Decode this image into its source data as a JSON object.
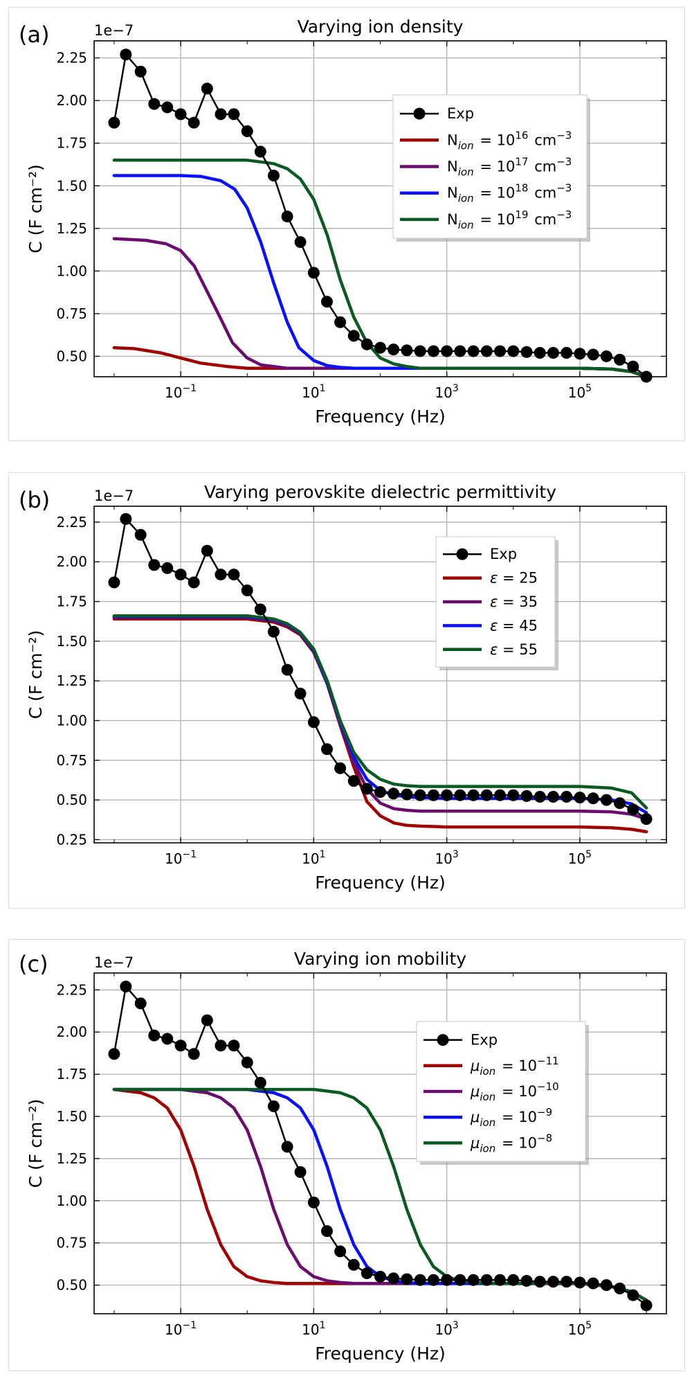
{
  "chart_data": [
    {
      "panel_label": "(a)",
      "type": "line",
      "title": "Varying ion density",
      "xlabel": "Frequency (Hz)",
      "ylabel": "C (F cm⁻²)",
      "y_multiplier_label": "1e−7",
      "xscale": "log",
      "xlim": [
        0.005,
        2000000
      ],
      "ylim": [
        0.38,
        2.35
      ],
      "ytick_labels": [
        "0.50",
        "0.75",
        "1.00",
        "1.25",
        "1.50",
        "1.75",
        "2.00",
        "2.25"
      ],
      "xtick_labels": [
        {
          "base": "10",
          "exp": "−1"
        },
        {
          "base": "10",
          "exp": "1"
        },
        {
          "base": "10",
          "exp": "3"
        },
        {
          "base": "10",
          "exp": "5"
        }
      ],
      "legend_position": "upper right",
      "exp": {
        "label": "Exp",
        "x": [
          0.01,
          0.015,
          0.025,
          0.04,
          0.063,
          0.1,
          0.158,
          0.25,
          0.4,
          0.63,
          1,
          1.58,
          2.5,
          4,
          6.3,
          10,
          15.8,
          25,
          40,
          63,
          100,
          158,
          251,
          398,
          631,
          1000,
          1585,
          2512,
          3981,
          6310,
          10000,
          15849,
          25119,
          39811,
          63096,
          100000,
          158489,
          251189,
          398107,
          630957,
          1000000
        ],
        "y": [
          1.87,
          2.27,
          2.17,
          1.98,
          1.96,
          1.92,
          1.87,
          2.07,
          1.92,
          1.92,
          1.82,
          1.7,
          1.56,
          1.32,
          1.17,
          0.99,
          0.82,
          0.7,
          0.62,
          0.57,
          0.55,
          0.54,
          0.535,
          0.53,
          0.53,
          0.53,
          0.53,
          0.53,
          0.53,
          0.53,
          0.53,
          0.525,
          0.52,
          0.52,
          0.52,
          0.515,
          0.51,
          0.5,
          0.48,
          0.44,
          0.38
        ]
      },
      "series": [
        {
          "label_main": "N",
          "label_sub": "ion",
          "label_post": " = 10",
          "label_sup": "16",
          "label_tail": " cm",
          "label_tail_sup": "−3",
          "color": "#a10000",
          "x": [
            0.01,
            0.02,
            0.05,
            0.1,
            0.2,
            0.5,
            1,
            3,
            10,
            100,
            1000,
            10000,
            100000,
            300000,
            600000,
            1000000
          ],
          "y": [
            0.55,
            0.545,
            0.52,
            0.49,
            0.46,
            0.44,
            0.43,
            0.43,
            0.43,
            0.43,
            0.43,
            0.43,
            0.43,
            0.425,
            0.41,
            0.38
          ]
        },
        {
          "label_main": "N",
          "label_sub": "ion",
          "label_post": " = 10",
          "label_sup": "17",
          "label_tail": " cm",
          "label_tail_sup": "−3",
          "color": "#6a0d6e",
          "x": [
            0.01,
            0.03,
            0.06,
            0.1,
            0.16,
            0.25,
            0.4,
            0.6,
            1,
            1.6,
            2.5,
            4,
            10,
            100,
            1000,
            10000,
            100000,
            300000,
            600000,
            1000000
          ],
          "y": [
            1.19,
            1.18,
            1.16,
            1.12,
            1.03,
            0.88,
            0.72,
            0.58,
            0.49,
            0.45,
            0.44,
            0.43,
            0.43,
            0.43,
            0.43,
            0.43,
            0.43,
            0.425,
            0.41,
            0.38
          ]
        },
        {
          "label_main": "N",
          "label_sub": "ion",
          "label_post": " = 10",
          "label_sup": "18",
          "label_tail": " cm",
          "label_tail_sup": "−3",
          "color": "#0a10ff",
          "x": [
            0.01,
            0.1,
            0.2,
            0.4,
            0.65,
            1,
            1.6,
            2.5,
            4,
            6,
            10,
            16,
            25,
            40,
            100,
            1000,
            10000,
            100000,
            300000,
            600000,
            1000000
          ],
          "y": [
            1.56,
            1.56,
            1.555,
            1.53,
            1.48,
            1.37,
            1.17,
            0.93,
            0.7,
            0.55,
            0.475,
            0.445,
            0.435,
            0.43,
            0.43,
            0.43,
            0.43,
            0.43,
            0.425,
            0.41,
            0.38
          ]
        },
        {
          "label_main": "N",
          "label_sub": "ion",
          "label_post": " = 10",
          "label_sup": "19",
          "label_tail": " cm",
          "label_tail_sup": "−3",
          "color": "#0b5a22",
          "x": [
            0.01,
            1,
            2.5,
            4,
            6.3,
            10,
            16,
            25,
            40,
            63,
            100,
            160,
            250,
            400,
            1000,
            10000,
            100000,
            300000,
            600000,
            1000000
          ],
          "y": [
            1.65,
            1.65,
            1.63,
            1.6,
            1.54,
            1.42,
            1.21,
            0.95,
            0.73,
            0.58,
            0.49,
            0.455,
            0.44,
            0.43,
            0.43,
            0.43,
            0.43,
            0.425,
            0.41,
            0.38
          ]
        }
      ]
    },
    {
      "panel_label": "(b)",
      "type": "line",
      "title": "Varying perovskite dielectric permittivity",
      "xlabel": "Frequency (Hz)",
      "ylabel": "C (F cm⁻²)",
      "y_multiplier_label": "1e−7",
      "xscale": "log",
      "xlim": [
        0.005,
        2000000
      ],
      "ylim": [
        0.23,
        2.35
      ],
      "ytick_labels": [
        "0.25",
        "0.50",
        "0.75",
        "1.00",
        "1.25",
        "1.50",
        "1.75",
        "2.00",
        "2.25"
      ],
      "xtick_labels": [
        {
          "base": "10",
          "exp": "−1"
        },
        {
          "base": "10",
          "exp": "1"
        },
        {
          "base": "10",
          "exp": "3"
        },
        {
          "base": "10",
          "exp": "5"
        }
      ],
      "legend_position": "upper right",
      "exp": {
        "label": "Exp",
        "x": [
          0.01,
          0.015,
          0.025,
          0.04,
          0.063,
          0.1,
          0.158,
          0.25,
          0.4,
          0.63,
          1,
          1.58,
          2.5,
          4,
          6.3,
          10,
          15.8,
          25,
          40,
          63,
          100,
          158,
          251,
          398,
          631,
          1000,
          1585,
          2512,
          3981,
          6310,
          10000,
          15849,
          25119,
          39811,
          63096,
          100000,
          158489,
          251189,
          398107,
          630957,
          1000000
        ],
        "y": [
          1.87,
          2.27,
          2.17,
          1.98,
          1.96,
          1.92,
          1.87,
          2.07,
          1.92,
          1.92,
          1.82,
          1.7,
          1.56,
          1.32,
          1.17,
          0.99,
          0.82,
          0.7,
          0.62,
          0.57,
          0.55,
          0.54,
          0.535,
          0.53,
          0.53,
          0.53,
          0.53,
          0.53,
          0.53,
          0.53,
          0.53,
          0.525,
          0.52,
          0.52,
          0.52,
          0.515,
          0.51,
          0.5,
          0.48,
          0.44,
          0.38
        ]
      },
      "series": [
        {
          "label_main": "ε",
          "label_sub": "",
          "label_post": " = 25",
          "label_sup": "",
          "label_tail": "",
          "label_tail_sup": "",
          "color": "#a10000",
          "x": [
            0.01,
            1,
            2.5,
            4,
            6.3,
            10,
            16,
            25,
            40,
            63,
            100,
            160,
            250,
            400,
            1000,
            10000,
            100000,
            300000,
            600000,
            1000000
          ],
          "y": [
            1.64,
            1.64,
            1.62,
            1.59,
            1.54,
            1.43,
            1.23,
            0.97,
            0.71,
            0.49,
            0.4,
            0.355,
            0.34,
            0.335,
            0.33,
            0.33,
            0.33,
            0.325,
            0.315,
            0.3
          ]
        },
        {
          "label_main": "ε",
          "label_sub": "",
          "label_post": " = 35",
          "label_sup": "",
          "label_tail": "",
          "label_tail_sup": "",
          "color": "#6a0d6e",
          "x": [
            0.01,
            1,
            2.5,
            4,
            6.3,
            10,
            16,
            25,
            40,
            63,
            100,
            160,
            250,
            400,
            1000,
            10000,
            100000,
            300000,
            600000,
            1000000
          ],
          "y": [
            1.65,
            1.65,
            1.63,
            1.6,
            1.55,
            1.44,
            1.23,
            0.98,
            0.74,
            0.57,
            0.48,
            0.445,
            0.435,
            0.43,
            0.43,
            0.43,
            0.43,
            0.425,
            0.41,
            0.38
          ]
        },
        {
          "label_main": "ε",
          "label_sub": "",
          "label_post": " = 45",
          "label_sup": "",
          "label_tail": "",
          "label_tail_sup": "",
          "color": "#0a10ff",
          "x": [
            0.01,
            1,
            2.5,
            4,
            6.3,
            10,
            16,
            25,
            40,
            63,
            100,
            160,
            250,
            400,
            1000,
            10000,
            100000,
            300000,
            600000,
            1000000
          ],
          "y": [
            1.655,
            1.655,
            1.635,
            1.605,
            1.55,
            1.44,
            1.24,
            0.99,
            0.77,
            0.63,
            0.56,
            0.53,
            0.52,
            0.515,
            0.51,
            0.51,
            0.51,
            0.5,
            0.475,
            0.42
          ]
        },
        {
          "label_main": "ε",
          "label_sub": "",
          "label_post": " = 55",
          "label_sup": "",
          "label_tail": "",
          "label_tail_sup": "",
          "color": "#0b5a22",
          "x": [
            0.01,
            1,
            2.5,
            4,
            6.3,
            10,
            16,
            25,
            40,
            63,
            100,
            160,
            250,
            400,
            1000,
            10000,
            100000,
            300000,
            600000,
            1000000
          ],
          "y": [
            1.66,
            1.66,
            1.64,
            1.61,
            1.555,
            1.45,
            1.25,
            1.0,
            0.8,
            0.69,
            0.63,
            0.6,
            0.59,
            0.585,
            0.585,
            0.585,
            0.585,
            0.575,
            0.545,
            0.45
          ]
        }
      ]
    },
    {
      "panel_label": "(c)",
      "type": "line",
      "title": "Varying ion mobility",
      "xlabel": "Frequency (Hz)",
      "ylabel": "C (F cm⁻²)",
      "y_multiplier_label": "1e−7",
      "xscale": "log",
      "xlim": [
        0.005,
        2000000
      ],
      "ylim": [
        0.33,
        2.35
      ],
      "ytick_labels": [
        "0.50",
        "0.75",
        "1.00",
        "1.25",
        "1.50",
        "1.75",
        "2.00",
        "2.25"
      ],
      "xtick_labels": [
        {
          "base": "10",
          "exp": "−1"
        },
        {
          "base": "10",
          "exp": "1"
        },
        {
          "base": "10",
          "exp": "3"
        },
        {
          "base": "10",
          "exp": "5"
        }
      ],
      "legend_position": "upper right",
      "exp": {
        "label": "Exp",
        "x": [
          0.01,
          0.015,
          0.025,
          0.04,
          0.063,
          0.1,
          0.158,
          0.25,
          0.4,
          0.63,
          1,
          1.58,
          2.5,
          4,
          6.3,
          10,
          15.8,
          25,
          40,
          63,
          100,
          158,
          251,
          398,
          631,
          1000,
          1585,
          2512,
          3981,
          6310,
          10000,
          15849,
          25119,
          39811,
          63096,
          100000,
          158489,
          251189,
          398107,
          630957,
          1000000
        ],
        "y": [
          1.87,
          2.27,
          2.17,
          1.98,
          1.96,
          1.92,
          1.87,
          2.07,
          1.92,
          1.92,
          1.82,
          1.7,
          1.56,
          1.32,
          1.17,
          0.99,
          0.82,
          0.7,
          0.62,
          0.57,
          0.55,
          0.54,
          0.535,
          0.53,
          0.53,
          0.53,
          0.53,
          0.53,
          0.53,
          0.53,
          0.53,
          0.525,
          0.52,
          0.52,
          0.52,
          0.515,
          0.51,
          0.5,
          0.48,
          0.44,
          0.38
        ]
      },
      "series": [
        {
          "label_main": "μ",
          "label_sub": "ion",
          "label_post": " = 10",
          "label_sup": "−11",
          "label_tail": "",
          "label_tail_sup": "",
          "color": "#a10000",
          "x": [
            0.01,
            0.025,
            0.04,
            0.063,
            0.1,
            0.16,
            0.25,
            0.4,
            0.63,
            1,
            1.6,
            2.5,
            4,
            10,
            100,
            1000,
            10000,
            100000,
            300000,
            600000,
            1000000
          ],
          "y": [
            1.66,
            1.64,
            1.61,
            1.55,
            1.42,
            1.2,
            0.95,
            0.74,
            0.61,
            0.55,
            0.525,
            0.515,
            0.51,
            0.51,
            0.51,
            0.51,
            0.51,
            0.51,
            0.49,
            0.46,
            0.41
          ]
        },
        {
          "label_main": "μ",
          "label_sub": "ion",
          "label_post": " = 10",
          "label_sup": "−10",
          "label_tail": "",
          "label_tail_sup": "",
          "color": "#6a0d6e",
          "x": [
            0.01,
            0.1,
            0.25,
            0.4,
            0.63,
            1,
            1.6,
            2.5,
            4,
            6.3,
            10,
            16,
            25,
            40,
            100,
            1000,
            10000,
            100000,
            300000,
            600000,
            1000000
          ],
          "y": [
            1.66,
            1.66,
            1.64,
            1.61,
            1.55,
            1.42,
            1.2,
            0.95,
            0.74,
            0.61,
            0.55,
            0.525,
            0.515,
            0.51,
            0.51,
            0.51,
            0.51,
            0.51,
            0.49,
            0.46,
            0.41
          ]
        },
        {
          "label_main": "μ",
          "label_sub": "ion",
          "label_post": " = 10",
          "label_sup": "−9",
          "label_tail": "",
          "label_tail_sup": "",
          "color": "#0a10ff",
          "x": [
            0.01,
            1,
            2.5,
            4,
            6.3,
            10,
            16,
            25,
            40,
            63,
            100,
            160,
            250,
            400,
            1000,
            10000,
            100000,
            300000,
            600000,
            1000000
          ],
          "y": [
            1.66,
            1.66,
            1.64,
            1.61,
            1.55,
            1.42,
            1.2,
            0.95,
            0.74,
            0.61,
            0.55,
            0.525,
            0.515,
            0.51,
            0.51,
            0.51,
            0.51,
            0.49,
            0.46,
            0.41
          ]
        },
        {
          "label_main": "μ",
          "label_sub": "ion",
          "label_post": " = 10",
          "label_sup": "−8",
          "label_tail": "",
          "label_tail_sup": "",
          "color": "#0b5a22",
          "x": [
            0.01,
            10,
            25,
            40,
            63,
            100,
            160,
            250,
            400,
            630,
            1000,
            1600,
            2500,
            4000,
            10000,
            100000,
            300000,
            600000,
            1000000
          ],
          "y": [
            1.66,
            1.66,
            1.64,
            1.61,
            1.55,
            1.42,
            1.2,
            0.95,
            0.74,
            0.61,
            0.55,
            0.525,
            0.515,
            0.51,
            0.51,
            0.51,
            0.49,
            0.46,
            0.41
          ]
        }
      ]
    }
  ]
}
